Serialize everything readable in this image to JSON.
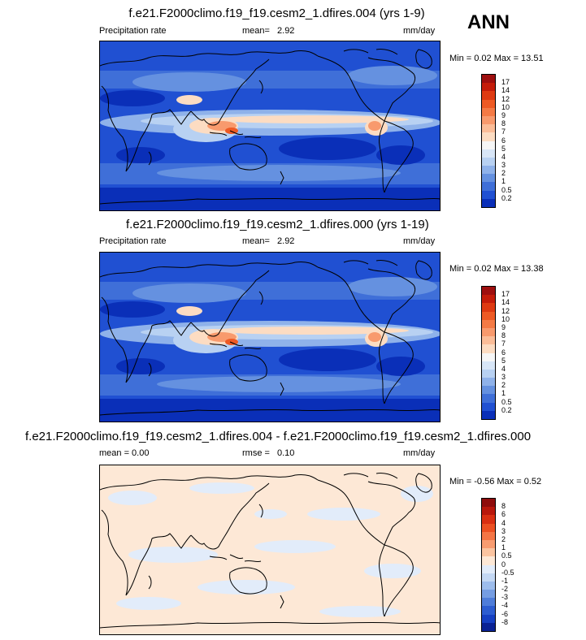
{
  "season": "ANN",
  "panels": [
    {
      "title": "f.e21.F2000climo.f19_f19.cesm2_1.dfires.004 (yrs 1-9)",
      "left_label": "Precipitation rate",
      "center_label": "mean=",
      "center_value": "2.92",
      "units": "mm/day",
      "minmax": "Min =  0.02 Max =  13.51"
    },
    {
      "title": "f.e21.F2000climo.f19_f19.cesm2_1.dfires.000 (yrs 1-19)",
      "left_label": "Precipitation rate",
      "center_label": "mean=",
      "center_value": "2.92",
      "units": "mm/day",
      "minmax": "Min =  0.02 Max =  13.38"
    },
    {
      "title": "f.e21.F2000climo.f19_f19.cesm2_1.dfires.004 - f.e21.F2000climo.f19_f19.cesm2_1.dfires.000",
      "left_label": "mean =   0.00",
      "center_label": "rmse =",
      "center_value": "0.10",
      "units": "mm/day",
      "minmax": "Min = -0.56 Max =  0.52"
    }
  ],
  "colorbars": {
    "precip": {
      "labels": [
        "17",
        "14",
        "12",
        "10",
        "9",
        "8",
        "7",
        "6",
        "5",
        "4",
        "3",
        "2",
        "1",
        "0.5",
        "0.2"
      ],
      "colors": [
        "#9e0f0f",
        "#c41c0a",
        "#de3a12",
        "#ee5a24",
        "#f47a45",
        "#f89a6d",
        "#fbbd98",
        "#fcdcc2",
        "#f6f6f6",
        "#d8e6f7",
        "#b8d1f2",
        "#8fb2ea",
        "#6591e0",
        "#3f6fd8",
        "#2050d2",
        "#0a2fb8"
      ]
    },
    "diff": {
      "labels": [
        "8",
        "6",
        "4",
        "3",
        "2",
        "1",
        "0.5",
        "0",
        "-0.5",
        "-1",
        "-2",
        "-3",
        "-4",
        "-6",
        "-8"
      ],
      "colors": [
        "#8e0c0c",
        "#b8170c",
        "#d92f12",
        "#ec5022",
        "#f47545",
        "#f89c70",
        "#fbc4a0",
        "#fde8d6",
        "#e2ecfa",
        "#c4d8f4",
        "#9dbdec",
        "#759de2",
        "#4f7dd9",
        "#2d5dd0",
        "#1640c2",
        "#0a2294"
      ]
    }
  }
}
